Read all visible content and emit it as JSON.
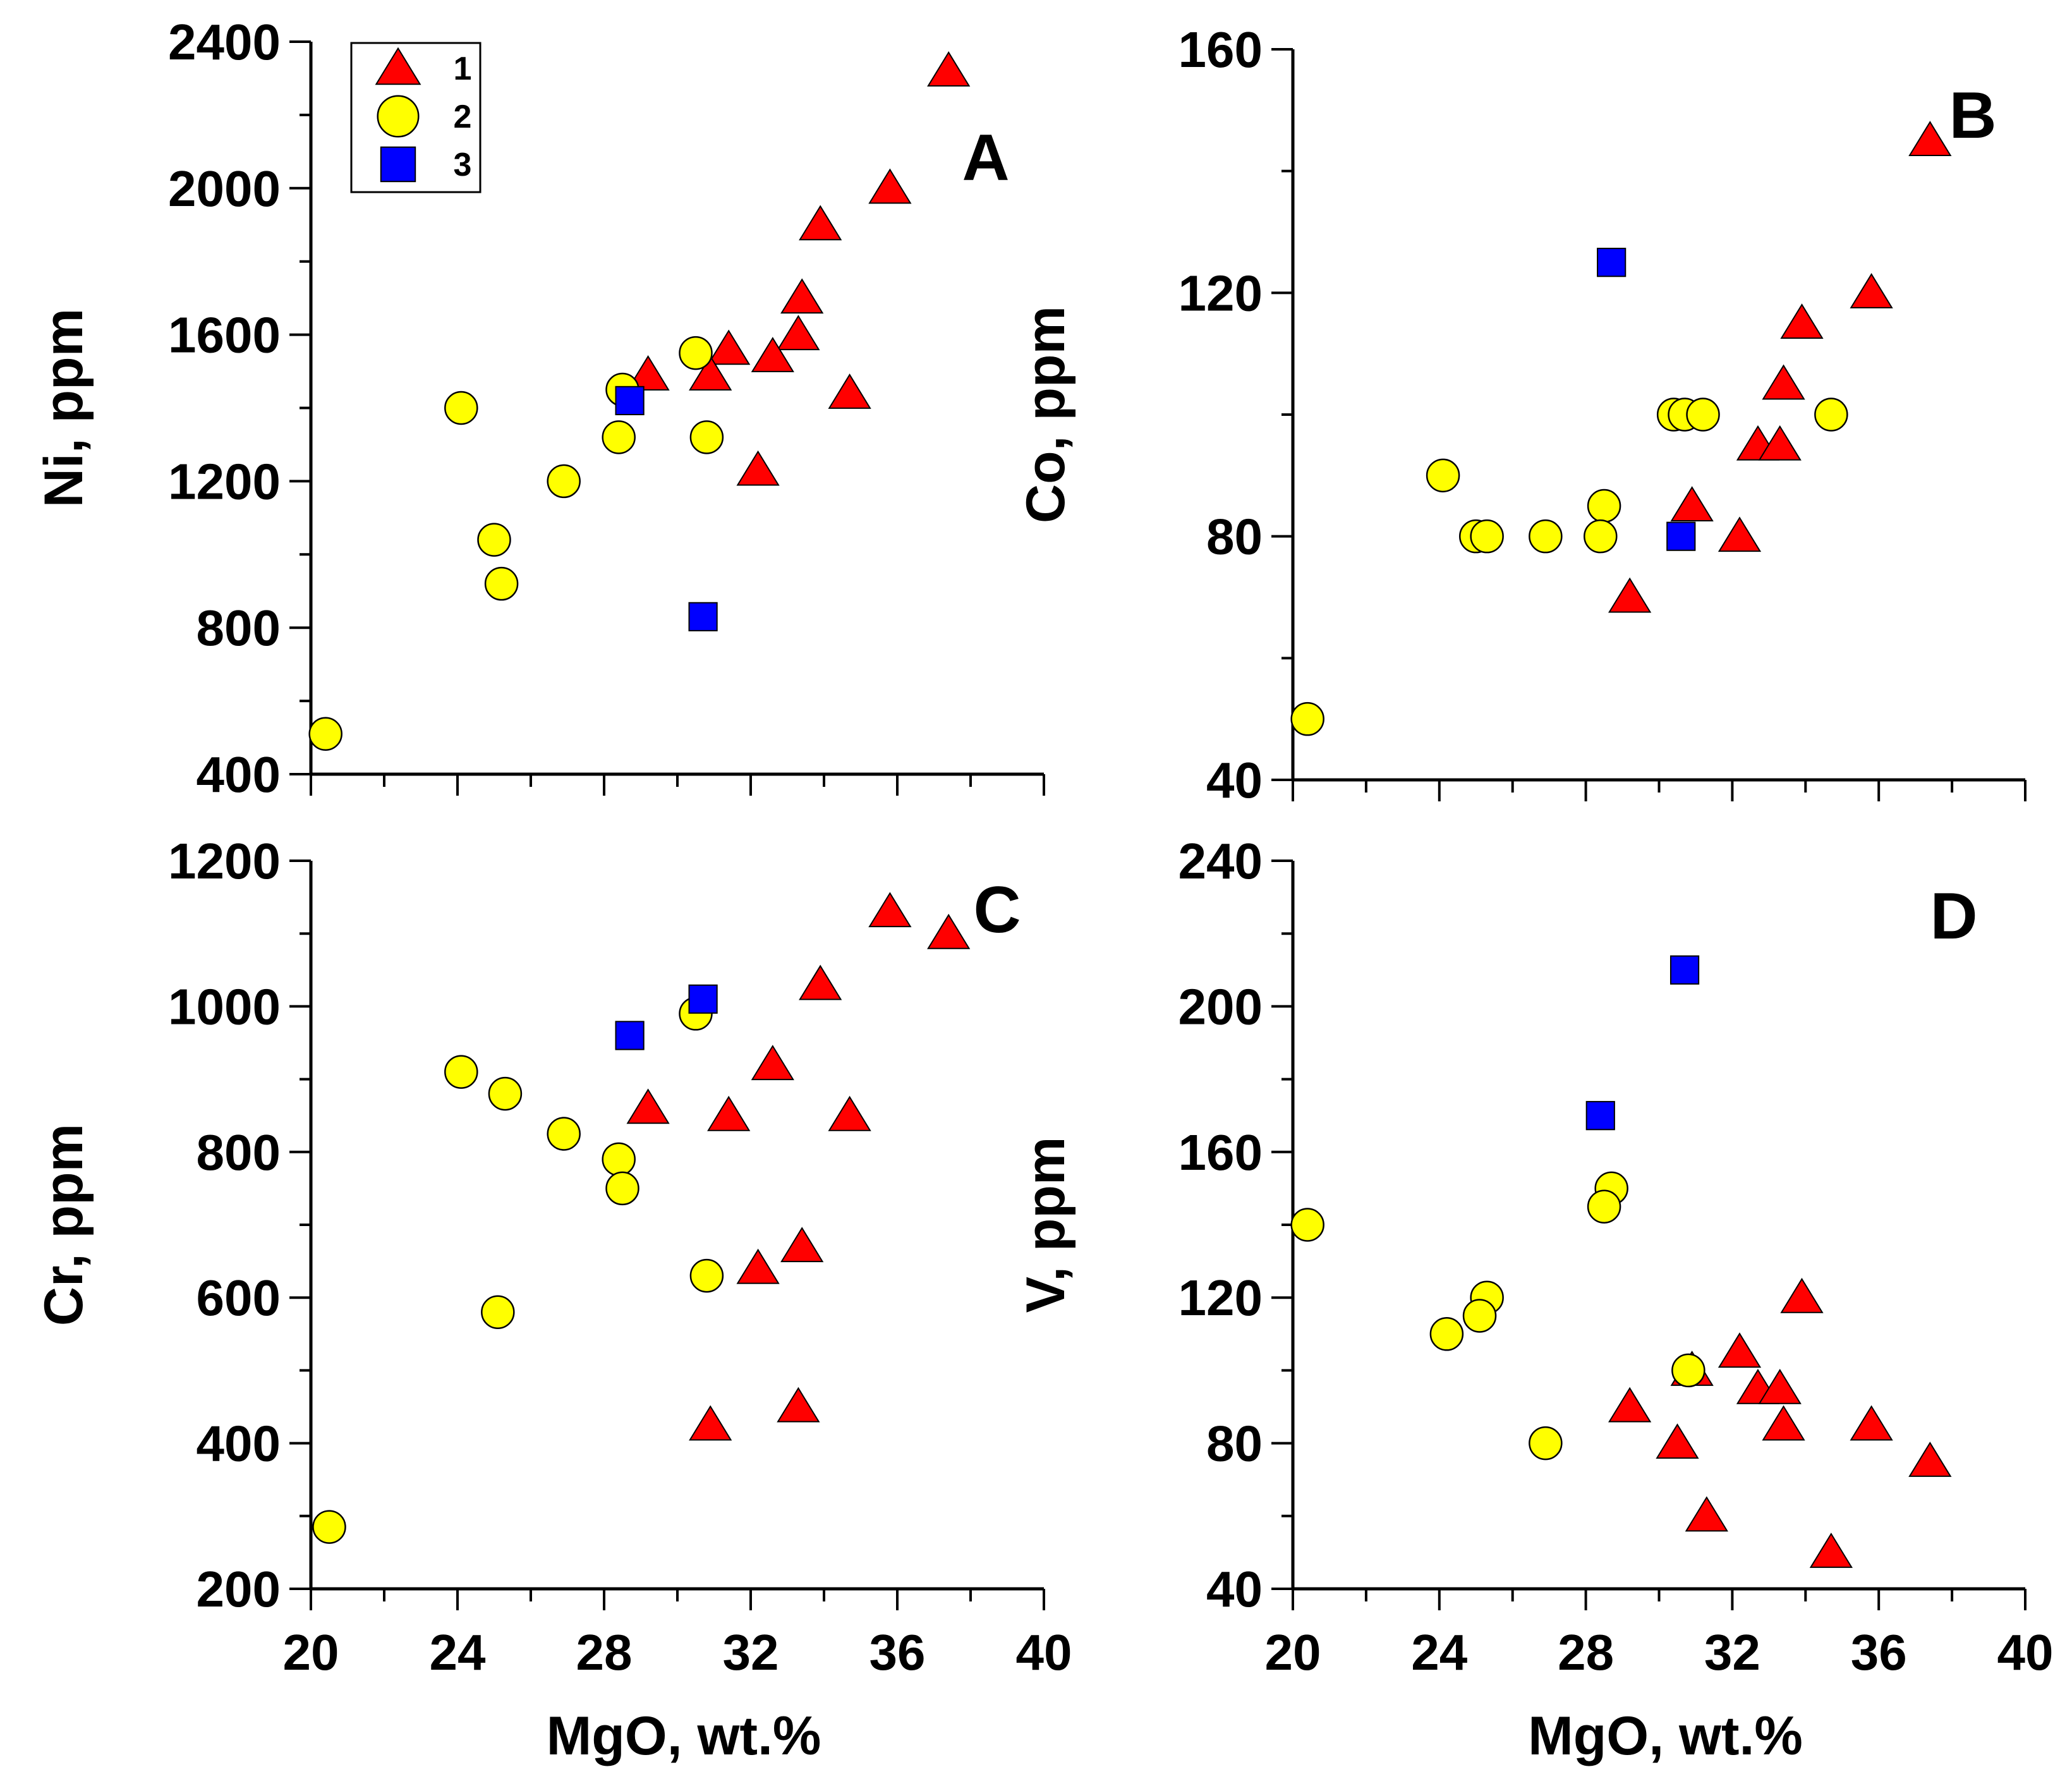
{
  "legend": [
    {
      "label": "1",
      "marker": "triangle",
      "color": "#ff0000"
    },
    {
      "label": "2",
      "marker": "circle",
      "color": "#ffff00"
    },
    {
      "label": "3",
      "marker": "square",
      "color": "#0000ff"
    }
  ],
  "chart_data": [
    {
      "type": "scatter",
      "panel": "A",
      "xlabel": "",
      "ylabel": "Ni, ppm",
      "xlim": [
        20,
        40
      ],
      "ylim": [
        400,
        2400
      ],
      "xticks": [],
      "yticks": [
        400,
        800,
        1200,
        1600,
        2000,
        2400
      ],
      "show_legend": true,
      "series": [
        {
          "name": "1",
          "points": [
            [
              37.4,
              2320
            ],
            [
              35.8,
              2000
            ],
            [
              33.9,
              1900
            ],
            [
              33.4,
              1700
            ],
            [
              33.3,
              1600
            ],
            [
              32.6,
              1540
            ],
            [
              31.4,
              1560
            ],
            [
              30.9,
              1490
            ],
            [
              29.2,
              1490
            ],
            [
              34.7,
              1440
            ],
            [
              32.2,
              1230
            ]
          ]
        },
        {
          "name": "2",
          "points": [
            [
              30.5,
              1550
            ],
            [
              28.5,
              1450
            ],
            [
              24.1,
              1400
            ],
            [
              28.4,
              1320
            ],
            [
              30.8,
              1320
            ],
            [
              26.9,
              1200
            ],
            [
              25.0,
              1040
            ],
            [
              25.2,
              920
            ],
            [
              20.4,
              510
            ]
          ]
        },
        {
          "name": "3",
          "points": [
            [
              28.7,
              1420
            ],
            [
              30.7,
              830
            ]
          ]
        }
      ]
    },
    {
      "type": "scatter",
      "panel": "B",
      "xlabel": "",
      "ylabel": "Co, ppm",
      "xlim": [
        20,
        40
      ],
      "ylim": [
        40,
        160
      ],
      "xticks": [],
      "yticks": [
        40,
        80,
        120,
        160
      ],
      "show_legend": false,
      "series": [
        {
          "name": "1",
          "points": [
            [
              37.4,
              145
            ],
            [
              35.8,
              120
            ],
            [
              33.9,
              115
            ],
            [
              33.4,
              105
            ],
            [
              32.7,
              95
            ],
            [
              33.3,
              95
            ],
            [
              30.9,
              85
            ],
            [
              32.2,
              80
            ],
            [
              29.2,
              70
            ]
          ]
        },
        {
          "name": "2",
          "points": [
            [
              30.4,
              100
            ],
            [
              30.7,
              100
            ],
            [
              31.2,
              100
            ],
            [
              34.7,
              100
            ],
            [
              24.1,
              90
            ],
            [
              28.5,
              85
            ],
            [
              25.0,
              80
            ],
            [
              25.3,
              80
            ],
            [
              26.9,
              80
            ],
            [
              28.4,
              80
            ],
            [
              20.4,
              50
            ]
          ]
        },
        {
          "name": "3",
          "points": [
            [
              28.7,
              125
            ],
            [
              30.6,
              80
            ]
          ]
        }
      ]
    },
    {
      "type": "scatter",
      "panel": "C",
      "xlabel": "MgO, wt.%",
      "ylabel": "Cr, ppm",
      "xlim": [
        20,
        40
      ],
      "ylim": [
        200,
        1200
      ],
      "xticks": [
        20,
        24,
        28,
        32,
        36,
        40
      ],
      "yticks": [
        200,
        400,
        600,
        800,
        1000,
        1200
      ],
      "show_legend": false,
      "series": [
        {
          "name": "1",
          "points": [
            [
              35.8,
              1130
            ],
            [
              37.4,
              1100
            ],
            [
              33.9,
              1030
            ],
            [
              32.6,
              920
            ],
            [
              29.2,
              860
            ],
            [
              31.4,
              850
            ],
            [
              34.7,
              850
            ],
            [
              33.4,
              670
            ],
            [
              32.2,
              640
            ],
            [
              33.3,
              450
            ],
            [
              30.9,
              425
            ]
          ]
        },
        {
          "name": "2",
          "points": [
            [
              30.5,
              990
            ],
            [
              24.1,
              910
            ],
            [
              25.3,
              880
            ],
            [
              26.9,
              825
            ],
            [
              28.4,
              790
            ],
            [
              28.5,
              750
            ],
            [
              30.8,
              630
            ],
            [
              25.1,
              580
            ],
            [
              20.5,
              285
            ]
          ]
        },
        {
          "name": "3",
          "points": [
            [
              30.7,
              1010
            ],
            [
              28.7,
              960
            ]
          ]
        }
      ]
    },
    {
      "type": "scatter",
      "panel": "D",
      "xlabel": "MgO, wt.%",
      "ylabel": "V, ppm",
      "xlim": [
        20,
        40
      ],
      "ylim": [
        40,
        240
      ],
      "xticks": [
        20,
        24,
        28,
        32,
        36,
        40
      ],
      "yticks": [
        40,
        80,
        120,
        160,
        200,
        240
      ],
      "show_legend": false,
      "series": [
        {
          "name": "1",
          "points": [
            [
              33.9,
              120
            ],
            [
              32.2,
              105
            ],
            [
              30.9,
              100
            ],
            [
              32.7,
              95
            ],
            [
              33.3,
              95
            ],
            [
              29.2,
              90
            ],
            [
              33.4,
              85
            ],
            [
              35.8,
              85
            ],
            [
              30.5,
              80
            ],
            [
              37.4,
              75
            ],
            [
              31.3,
              60
            ],
            [
              34.7,
              50
            ]
          ]
        },
        {
          "name": "2",
          "points": [
            [
              20.4,
              140
            ],
            [
              28.7,
              150
            ],
            [
              28.5,
              145
            ],
            [
              25.3,
              120
            ],
            [
              25.1,
              115
            ],
            [
              24.2,
              110
            ],
            [
              30.8,
              100
            ],
            [
              26.9,
              80
            ]
          ]
        },
        {
          "name": "3",
          "points": [
            [
              30.7,
              210
            ],
            [
              28.4,
              170
            ]
          ]
        }
      ]
    }
  ]
}
